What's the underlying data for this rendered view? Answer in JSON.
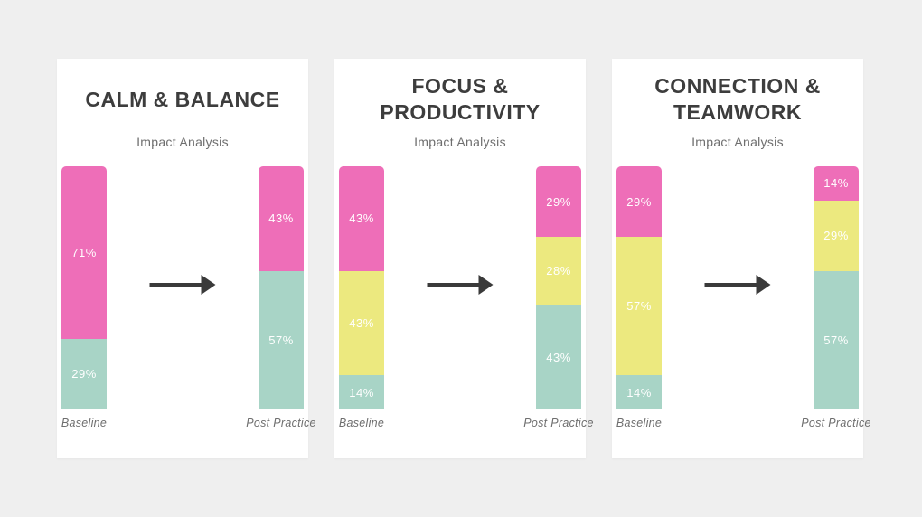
{
  "page": {
    "background": "#efefef",
    "card_background": "#ffffff"
  },
  "colors": {
    "pink": "#ee6eb8",
    "yellow": "#ece97f",
    "teal": "#a8d4c6",
    "arrow": "#3a3a3a",
    "title_text": "#3d3d3d",
    "muted_text": "#6e6e6e",
    "segment_label_text": "#ffffff"
  },
  "cards": [
    {
      "title": "CALM & BALANCE",
      "subtitle": "Impact Analysis",
      "baseline_label": "Baseline",
      "post_label": "Post Practice",
      "baseline_segments": [
        {
          "color": "pink",
          "value": 71,
          "label": "71%"
        },
        {
          "color": "teal",
          "value": 29,
          "label": "29%"
        }
      ],
      "post_segments": [
        {
          "color": "pink",
          "value": 43,
          "label": "43%"
        },
        {
          "color": "teal",
          "value": 57,
          "label": "57%"
        }
      ]
    },
    {
      "title": "FOCUS & PRODUCTIVITY",
      "subtitle": "Impact Analysis",
      "baseline_label": "Baseline",
      "post_label": "Post Practice",
      "baseline_segments": [
        {
          "color": "pink",
          "value": 43,
          "label": "43%"
        },
        {
          "color": "yellow",
          "value": 43,
          "label": "43%"
        },
        {
          "color": "teal",
          "value": 14,
          "label": "14%"
        }
      ],
      "post_segments": [
        {
          "color": "pink",
          "value": 29,
          "label": "29%"
        },
        {
          "color": "yellow",
          "value": 28,
          "label": "28%"
        },
        {
          "color": "teal",
          "value": 43,
          "label": "43%"
        }
      ]
    },
    {
      "title": "CONNECTION & TEAMWORK",
      "subtitle": "Impact Analysis",
      "baseline_label": "Baseline",
      "post_label": "Post Practice",
      "baseline_segments": [
        {
          "color": "pink",
          "value": 29,
          "label": "29%"
        },
        {
          "color": "yellow",
          "value": 57,
          "label": "57%"
        },
        {
          "color": "teal",
          "value": 14,
          "label": "14%"
        }
      ],
      "post_segments": [
        {
          "color": "pink",
          "value": 14,
          "label": "14%"
        },
        {
          "color": "yellow",
          "value": 29,
          "label": "29%"
        },
        {
          "color": "teal",
          "value": 57,
          "label": "57%"
        }
      ]
    }
  ],
  "chart_data": [
    {
      "type": "bar",
      "subtype": "stacked-percentage",
      "title": "CALM & BALANCE",
      "subtitle": "Impact Analysis",
      "categories": [
        "Baseline",
        "Post Practice"
      ],
      "stack_order": "top-to-bottom",
      "series": [
        {
          "name": "pink-segment",
          "color": "#ee6eb8",
          "values": [
            71,
            43
          ]
        },
        {
          "name": "teal-segment",
          "color": "#a8d4c6",
          "values": [
            29,
            57
          ]
        }
      ],
      "ylim": [
        0,
        100
      ],
      "grid": false,
      "legend": false,
      "annotations": [
        "arrow pointing from Baseline bar to Post Practice bar"
      ]
    },
    {
      "type": "bar",
      "subtype": "stacked-percentage",
      "title": "FOCUS & PRODUCTIVITY",
      "subtitle": "Impact Analysis",
      "categories": [
        "Baseline",
        "Post Practice"
      ],
      "stack_order": "top-to-bottom",
      "series": [
        {
          "name": "pink-segment",
          "color": "#ee6eb8",
          "values": [
            43,
            29
          ]
        },
        {
          "name": "yellow-segment",
          "color": "#ece97f",
          "values": [
            43,
            28
          ]
        },
        {
          "name": "teal-segment",
          "color": "#a8d4c6",
          "values": [
            14,
            43
          ]
        }
      ],
      "ylim": [
        0,
        100
      ],
      "grid": false,
      "legend": false,
      "annotations": [
        "arrow pointing from Baseline bar to Post Practice bar"
      ]
    },
    {
      "type": "bar",
      "subtype": "stacked-percentage",
      "title": "CONNECTION & TEAMWORK",
      "subtitle": "Impact Analysis",
      "categories": [
        "Baseline",
        "Post Practice"
      ],
      "stack_order": "top-to-bottom",
      "series": [
        {
          "name": "pink-segment",
          "color": "#ee6eb8",
          "values": [
            29,
            14
          ]
        },
        {
          "name": "yellow-segment",
          "color": "#ece97f",
          "values": [
            57,
            29
          ]
        },
        {
          "name": "teal-segment",
          "color": "#a8d4c6",
          "values": [
            14,
            57
          ]
        }
      ],
      "ylim": [
        0,
        100
      ],
      "grid": false,
      "legend": false,
      "annotations": [
        "arrow pointing from Baseline bar to Post Practice bar"
      ]
    }
  ]
}
